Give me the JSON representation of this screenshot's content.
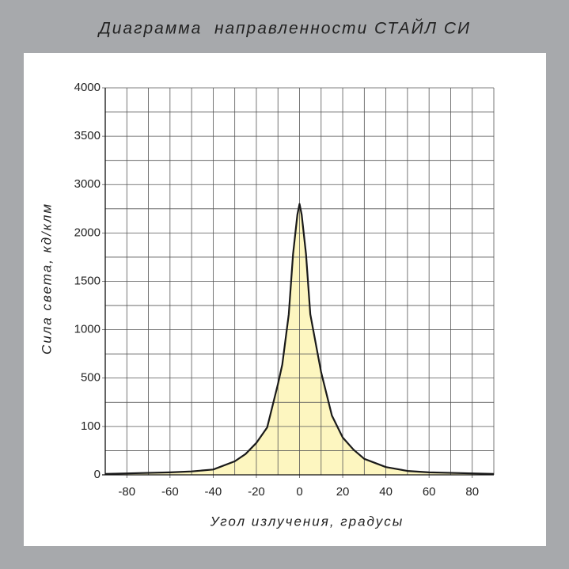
{
  "chart_data": {
    "type": "line",
    "title": "Диаграмма  направленности СТАЙЛ СИ",
    "x_label": "Угол излучения, градусы",
    "y_label": "Сила света, кд/клм",
    "x": [
      -90,
      -80,
      -60,
      -50,
      -40,
      -30,
      -25,
      -20,
      -15,
      -10,
      -8,
      -5,
      -3,
      -1,
      0,
      1,
      3,
      5,
      8,
      10,
      15,
      20,
      25,
      30,
      40,
      50,
      60,
      80,
      90
    ],
    "series": [
      {
        "color": "#1a1a1a",
        "fill": "#fdf5b5",
        "values": [
          2,
          3,
          5,
          7,
          11,
          28,
          43,
          66,
          98,
          450,
          640,
          1160,
          1780,
          2380,
          2600,
          2380,
          1780,
          1160,
          800,
          560,
          190,
          77,
          52,
          33,
          16,
          8,
          5,
          3,
          2
        ]
      }
    ],
    "xlim": [
      -90,
      90
    ],
    "xticks": [
      -80,
      -60,
      -40,
      -20,
      0,
      20,
      40,
      60,
      80
    ],
    "ylim": [
      0,
      4000
    ],
    "yticks": [
      0,
      100,
      500,
      1000,
      1500,
      2000,
      3000,
      3500,
      4000
    ],
    "yscale": "piecewise",
    "grid": true
  }
}
